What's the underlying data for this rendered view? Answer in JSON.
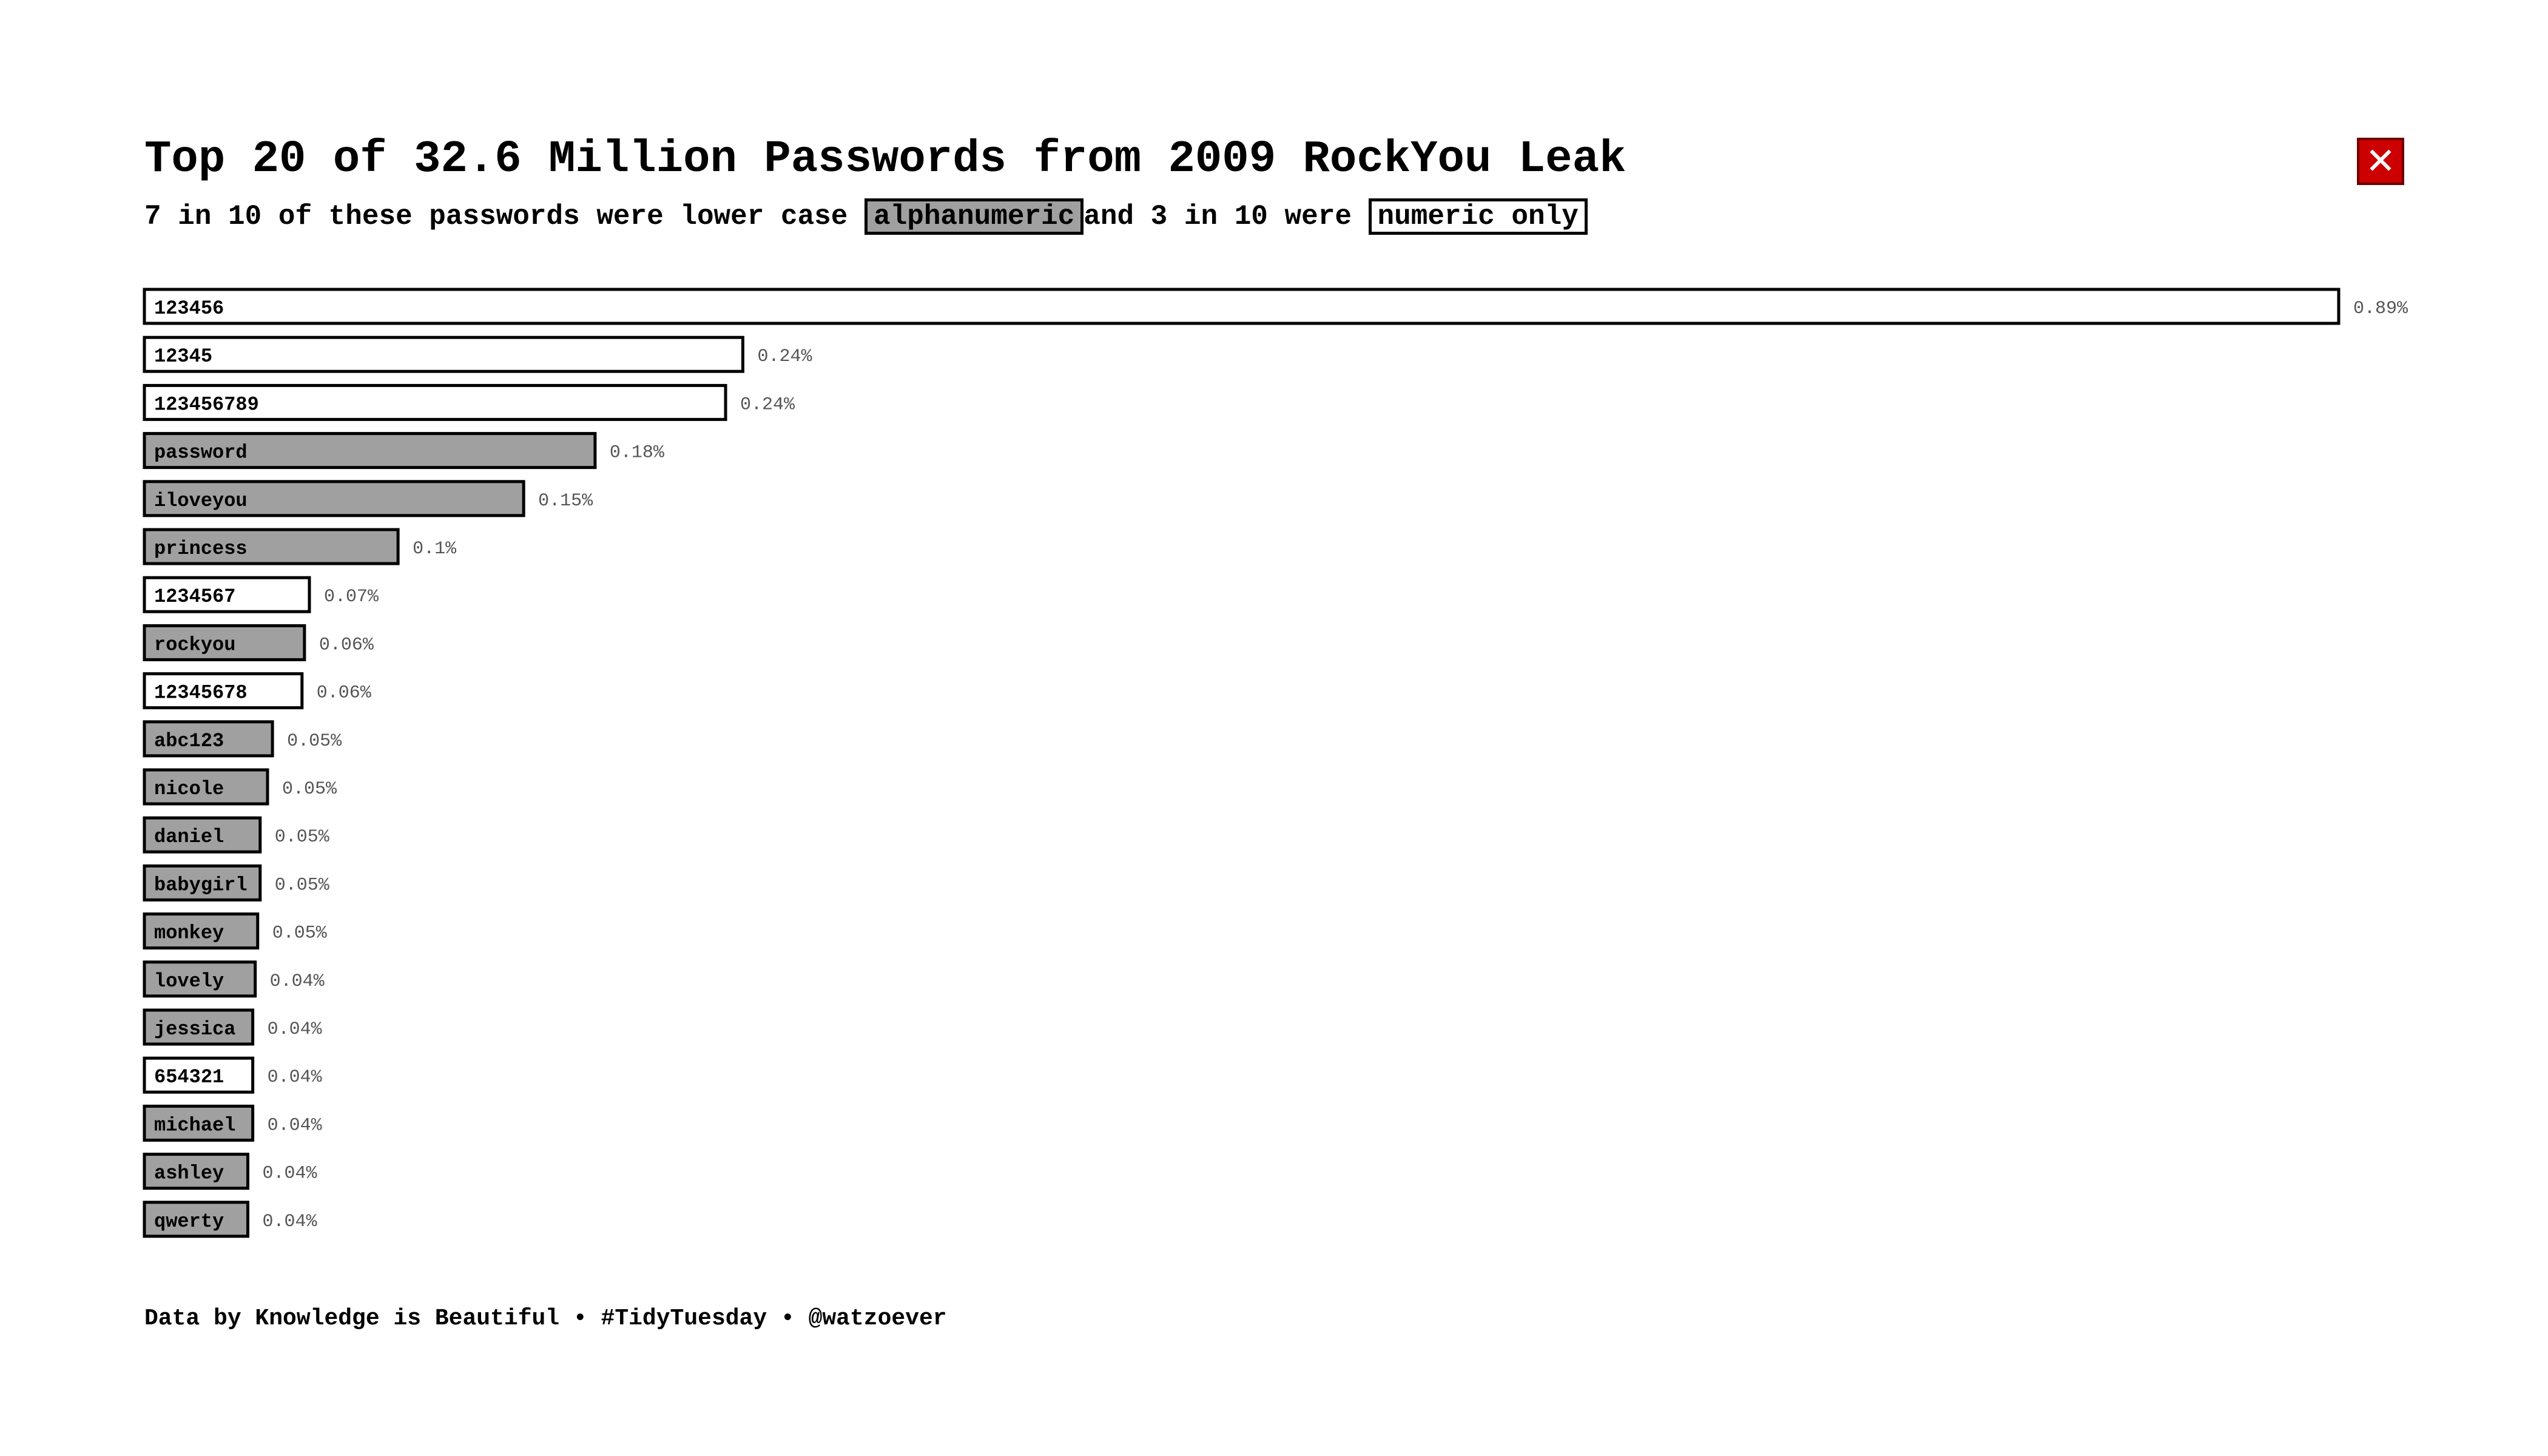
{
  "title": "Top 20 of 32.6 Million Passwords from 2009 RockYou Leak",
  "subtitle": {
    "prefix": "7 in 10 of these passwords were lower case",
    "alpha_chip": "alphanumeric",
    "middle": "and 3 in 10 were",
    "numeric_chip": "numeric only"
  },
  "close_icon": "close-icon",
  "footer": "Data by Knowledge is Beautiful • #TidyTuesday • @watzoever",
  "colors": {
    "alphanumeric": "#a0a0a0",
    "numeric": "#ffffff",
    "outline": "#000000",
    "value_label": "#555555",
    "close_bg": "#cc0000"
  },
  "chart_data": {
    "type": "bar",
    "orientation": "horizontal",
    "title": "Top 20 of 32.6 Million Passwords from 2009 RockYou Leak",
    "subtitle": "7 in 10 of these passwords were lower case alphanumeric and 3 in 10 were numeric only",
    "xlabel": "",
    "ylabel": "",
    "grid": false,
    "legend": "inline in subtitle",
    "xlim": [
      0,
      0.89
    ],
    "categories": [
      "123456",
      "12345",
      "123456789",
      "password",
      "iloveyou",
      "princess",
      "1234567",
      "rockyou",
      "12345678",
      "abc123",
      "nicole",
      "daniel",
      "babygirl",
      "monkey",
      "lovely",
      "jessica",
      "654321",
      "michael",
      "ashley",
      "qwerty"
    ],
    "values": [
      0.891,
      0.243,
      0.236,
      0.183,
      0.154,
      0.103,
      0.067,
      0.065,
      0.064,
      0.052,
      0.05,
      0.047,
      0.047,
      0.046,
      0.045,
      0.044,
      0.044,
      0.044,
      0.042,
      0.042
    ],
    "value_labels": [
      "0.89%",
      "0.24%",
      "0.24%",
      "0.18%",
      "0.15%",
      "0.1%",
      "0.07%",
      "0.06%",
      "0.06%",
      "0.05%",
      "0.05%",
      "0.05%",
      "0.05%",
      "0.05%",
      "0.04%",
      "0.04%",
      "0.04%",
      "0.04%",
      "0.04%",
      "0.04%"
    ],
    "types": [
      "numeric",
      "numeric",
      "numeric",
      "alphanumeric",
      "alphanumeric",
      "alphanumeric",
      "numeric",
      "alphanumeric",
      "numeric",
      "alphanumeric",
      "alphanumeric",
      "alphanumeric",
      "alphanumeric",
      "alphanumeric",
      "alphanumeric",
      "alphanumeric",
      "numeric",
      "alphanumeric",
      "alphanumeric",
      "alphanumeric"
    ]
  }
}
